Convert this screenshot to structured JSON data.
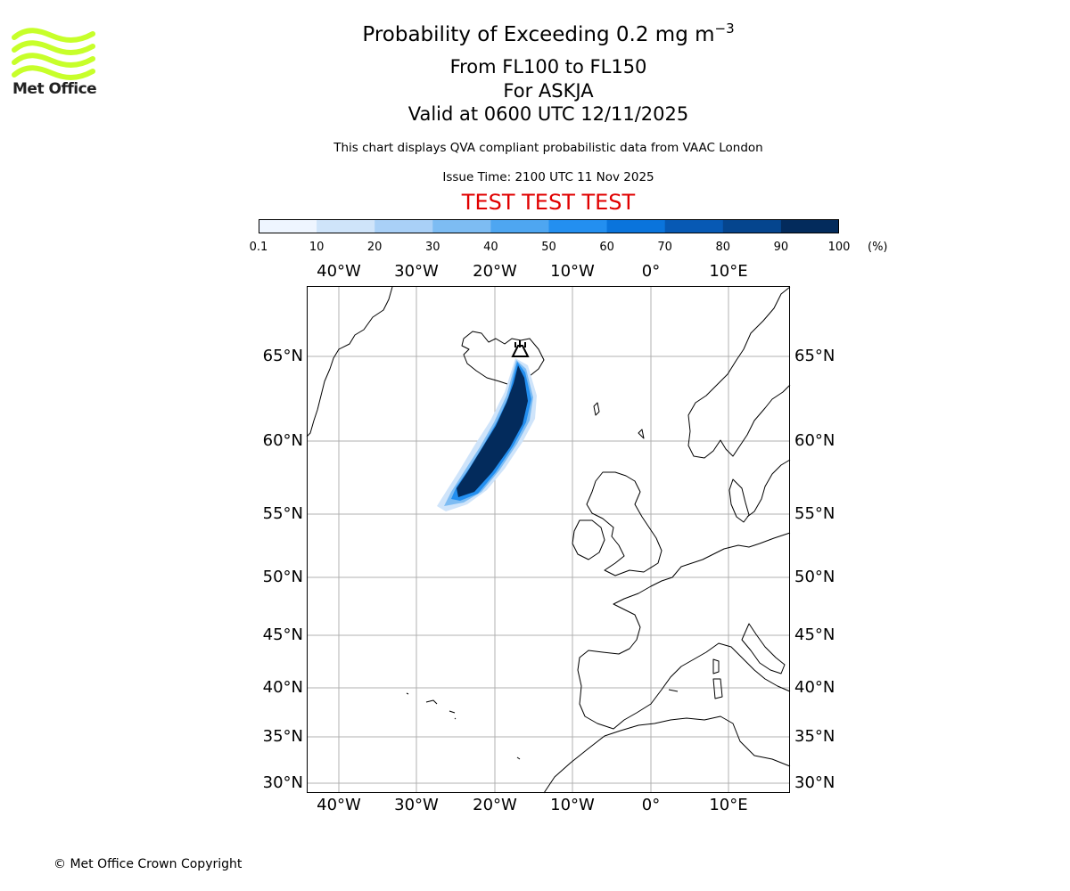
{
  "logo": {
    "name": "Met Office",
    "color": "#c7ff2a"
  },
  "title": {
    "prefix": "Probability of Exceeding 0.2 mg m",
    "superscript": "−3"
  },
  "subtitle_lines": [
    "From FL100 to FL150",
    "For ASKJA",
    "Valid at 0600 UTC 12/11/2025"
  ],
  "note": "This chart displays QVA compliant probabilistic data from VAAC London",
  "issue_time": "Issue Time: 2100 UTC 11 Nov 2025",
  "test_banner": "TEST TEST TEST",
  "colorbar": {
    "ticks": [
      "0.1",
      "10",
      "20",
      "30",
      "40",
      "50",
      "60",
      "70",
      "80",
      "90",
      "100"
    ],
    "unit": "(%)",
    "colors": [
      "#eef5ff",
      "#cfe4fa",
      "#a9d0f7",
      "#7dbcf3",
      "#4ea6f1",
      "#238ff0",
      "#0a74dc",
      "#0759b4",
      "#05458e",
      "#032b5c"
    ]
  },
  "map": {
    "lon_labels": [
      "40°W",
      "30°W",
      "20°W",
      "10°W",
      "0°",
      "10°E"
    ],
    "lat_labels": [
      "65°N",
      "60°N",
      "55°N",
      "50°N",
      "45°N",
      "40°N",
      "35°N",
      "30°N"
    ],
    "volcano": "Askja",
    "plume_probability_max": 100
  },
  "copyright": "© Met Office Crown Copyright"
}
